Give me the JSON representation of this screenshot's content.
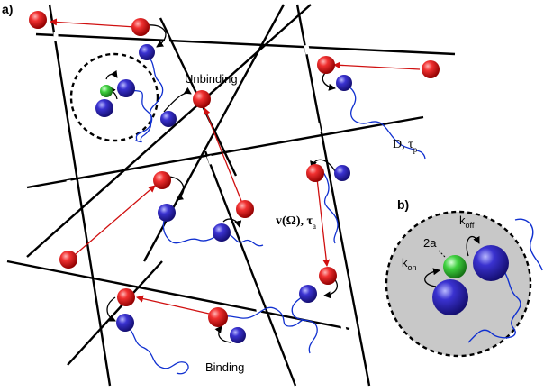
{
  "panel_labels": {
    "a": "a)",
    "b": "b)"
  },
  "annotations": {
    "unbinding": "Unbinding",
    "binding": "Binding",
    "diffusion": "D, τ",
    "diffusion_sub": "p",
    "velocity": "v(Ω), τ",
    "velocity_sub": "a"
  },
  "inset_labels": {
    "k_off": "k",
    "k_off_sub": "off",
    "k_on": "k",
    "k_on_sub": "on",
    "two_a": "2a"
  },
  "colors": {
    "red_particle": "#e81010",
    "blue_particle": "#2a24b8",
    "green_particle": "#3fc83f",
    "tether": "#1030d0",
    "arrow_red": "#d01010",
    "inset_disk": "#c8c8c8"
  }
}
